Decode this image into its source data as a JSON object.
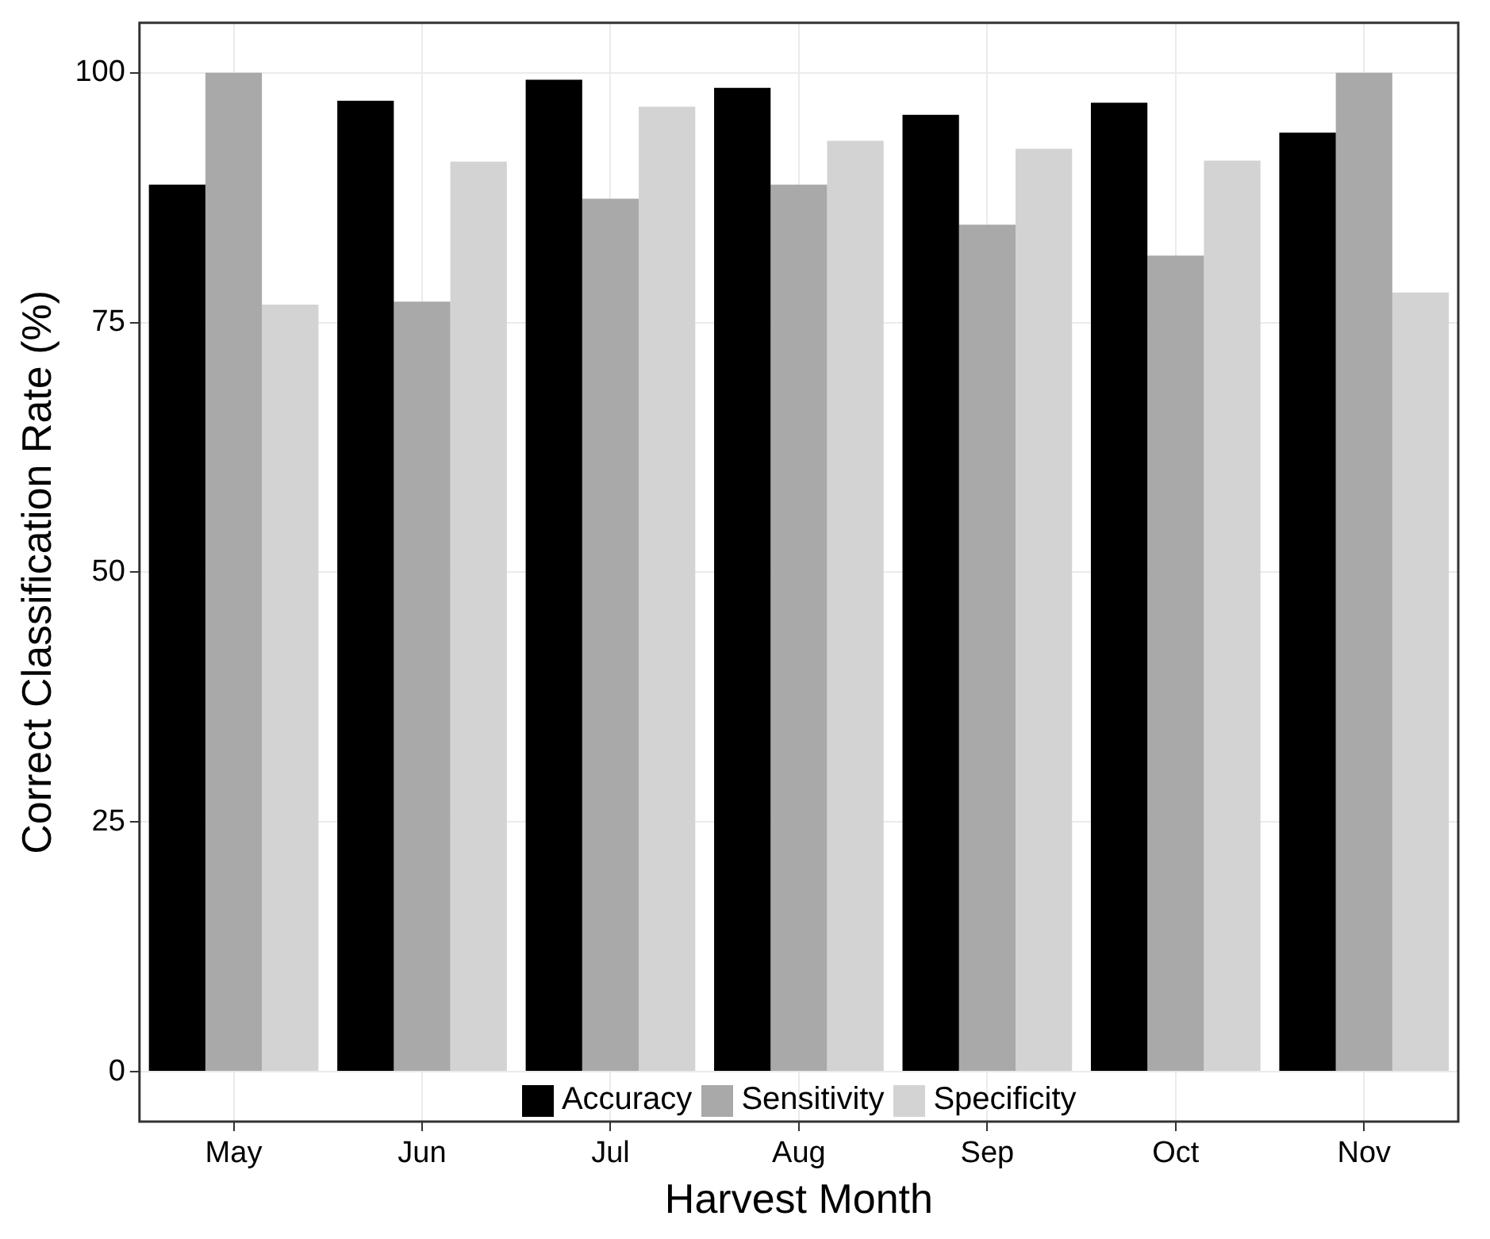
{
  "chart_data": {
    "type": "bar",
    "xlabel": "Harvest Month",
    "ylabel": "Correct Classification Rate (%)",
    "categories": [
      "May",
      "Jun",
      "Jul",
      "Aug",
      "Sep",
      "Oct",
      "Nov"
    ],
    "series": [
      {
        "name": "Accuracy",
        "color": "#000000",
        "values": [
          88.8,
          97.2,
          99.3,
          98.5,
          95.8,
          97.0,
          94.0
        ]
      },
      {
        "name": "Sensitivity",
        "color": "#a9a9a9",
        "values": [
          100,
          77.1,
          87.4,
          88.8,
          84.8,
          81.7,
          100
        ]
      },
      {
        "name": "Specificity",
        "color": "#d3d3d3",
        "values": [
          76.8,
          91.1,
          96.6,
          93.2,
          92.4,
          91.2,
          78.0
        ]
      }
    ],
    "ylim": [
      -5,
      105
    ],
    "yticks": [
      0,
      25,
      50,
      75,
      100
    ],
    "grid": true,
    "legend": "bottom"
  }
}
